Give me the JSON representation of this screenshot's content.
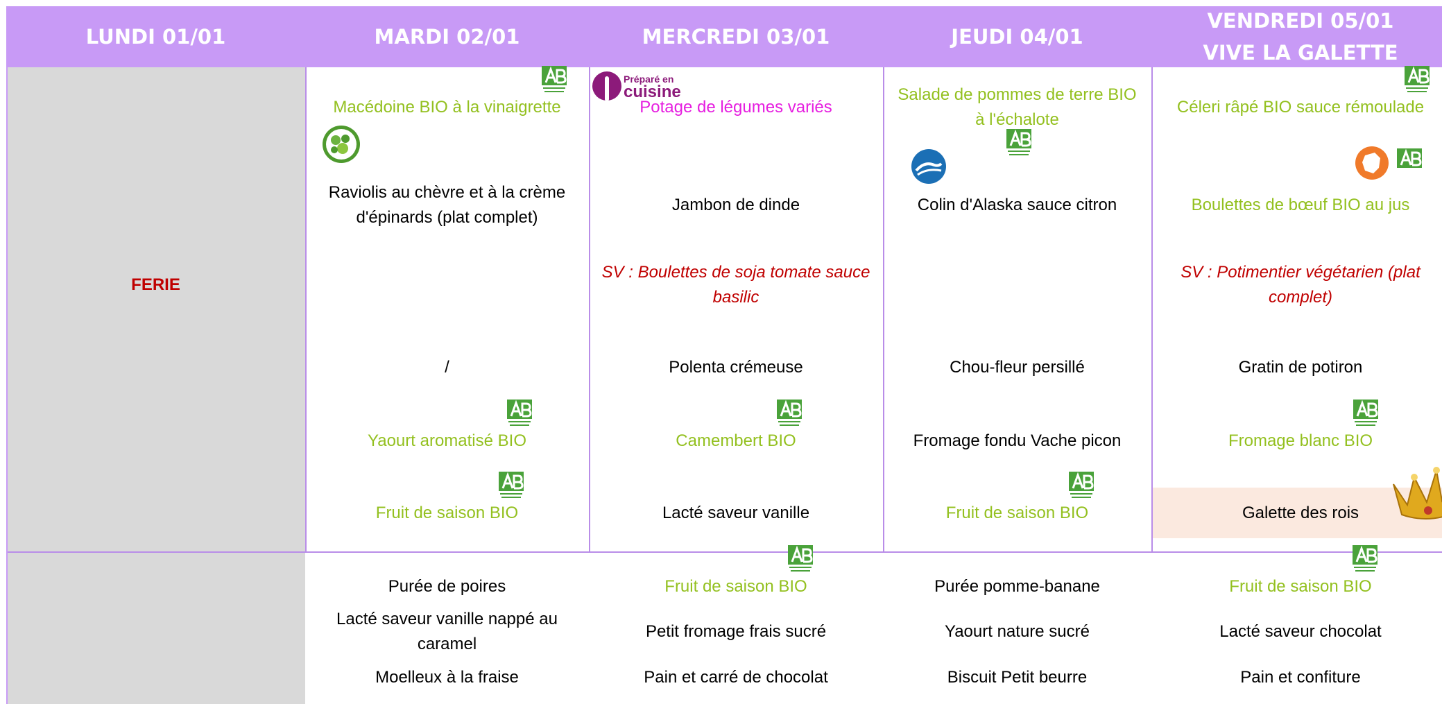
{
  "header": {
    "days": [
      [
        "LUNDI 01/01"
      ],
      [
        "MARDI 02/01"
      ],
      [
        "MERCREDI 03/01"
      ],
      [
        "JEUDI 04/01"
      ],
      [
        "VENDREDI 05/01",
        "VIVE LA GALETTE"
      ]
    ]
  },
  "closed_day": "FERIE",
  "logos": {
    "cuisine": [
      "Préparé en",
      "cuisine"
    ]
  },
  "lunch": [
    [
      {
        "text": "Macédoine BIO à la vinaigrette",
        "kind": "bio",
        "icon": "ab"
      },
      {
        "text": "Raviolis au chèvre et à la crème d'épinards (plat complet)",
        "kind": "plain",
        "icon": "veg"
      },
      null,
      {
        "text": "/",
        "kind": "plain"
      },
      {
        "text": "Yaourt aromatisé BIO",
        "kind": "bio",
        "icon": "ab"
      },
      {
        "text": "Fruit de saison BIO",
        "kind": "bio",
        "icon": "ab"
      }
    ],
    [
      {
        "text": "Potage de légumes variés",
        "kind": "cuisine",
        "icon": "cuisine"
      },
      {
        "text": "Jambon de dinde",
        "kind": "plain"
      },
      {
        "text": "SV : Boulettes de soja tomate sauce basilic",
        "kind": "sv"
      },
      {
        "text": "Polenta crémeuse",
        "kind": "plain"
      },
      {
        "text": "Camembert BIO",
        "kind": "bio",
        "icon": "ab"
      },
      {
        "text": "Lacté saveur vanille",
        "kind": "plain"
      }
    ],
    [
      {
        "text": "Salade de pommes de terre BIO à l'échalote",
        "kind": "bio",
        "icon": "ab-below"
      },
      {
        "text": "Colin d'Alaska sauce citron",
        "kind": "plain",
        "icon": "fish"
      },
      null,
      {
        "text": "Chou-fleur persillé",
        "kind": "plain"
      },
      {
        "text": "Fromage fondu Vache picon",
        "kind": "plain"
      },
      {
        "text": "Fruit de saison BIO",
        "kind": "bio",
        "icon": "ab"
      }
    ],
    [
      {
        "text": "Céleri râpé BIO sauce rémoulade",
        "kind": "bio",
        "icon": "ab"
      },
      {
        "text": "Boulettes de bœuf BIO au jus",
        "kind": "bio",
        "icon": "france"
      },
      {
        "text": "SV : Potimentier végétarien (plat complet)",
        "kind": "sv"
      },
      {
        "text": "Gratin de potiron",
        "kind": "plain"
      },
      {
        "text": "Fromage blanc BIO",
        "kind": "bio",
        "icon": "ab"
      },
      {
        "text": "Galette des rois",
        "kind": "plain",
        "icon": "crown"
      }
    ]
  ],
  "snack": [
    [
      {
        "text": "Purée de poires",
        "kind": "plain"
      },
      {
        "text": "Lacté saveur vanille nappé au caramel",
        "kind": "plain"
      },
      {
        "text": "Moelleux à la fraise",
        "kind": "plain"
      }
    ],
    [
      {
        "text": "Fruit de saison BIO",
        "kind": "bio",
        "icon": "ab"
      },
      {
        "text": "Petit fromage frais sucré",
        "kind": "plain"
      },
      {
        "text": "Pain et carré de chocolat",
        "kind": "plain"
      }
    ],
    [
      {
        "text": "Purée pomme-banane",
        "kind": "plain"
      },
      {
        "text": "Yaourt nature sucré",
        "kind": "plain"
      },
      {
        "text": "Biscuit Petit beurre",
        "kind": "plain"
      }
    ],
    [
      {
        "text": "Fruit de saison BIO",
        "kind": "bio",
        "icon": "ab"
      },
      {
        "text": "Lacté saveur chocolat",
        "kind": "plain"
      },
      {
        "text": "Pain et confiture",
        "kind": "plain"
      }
    ]
  ]
}
